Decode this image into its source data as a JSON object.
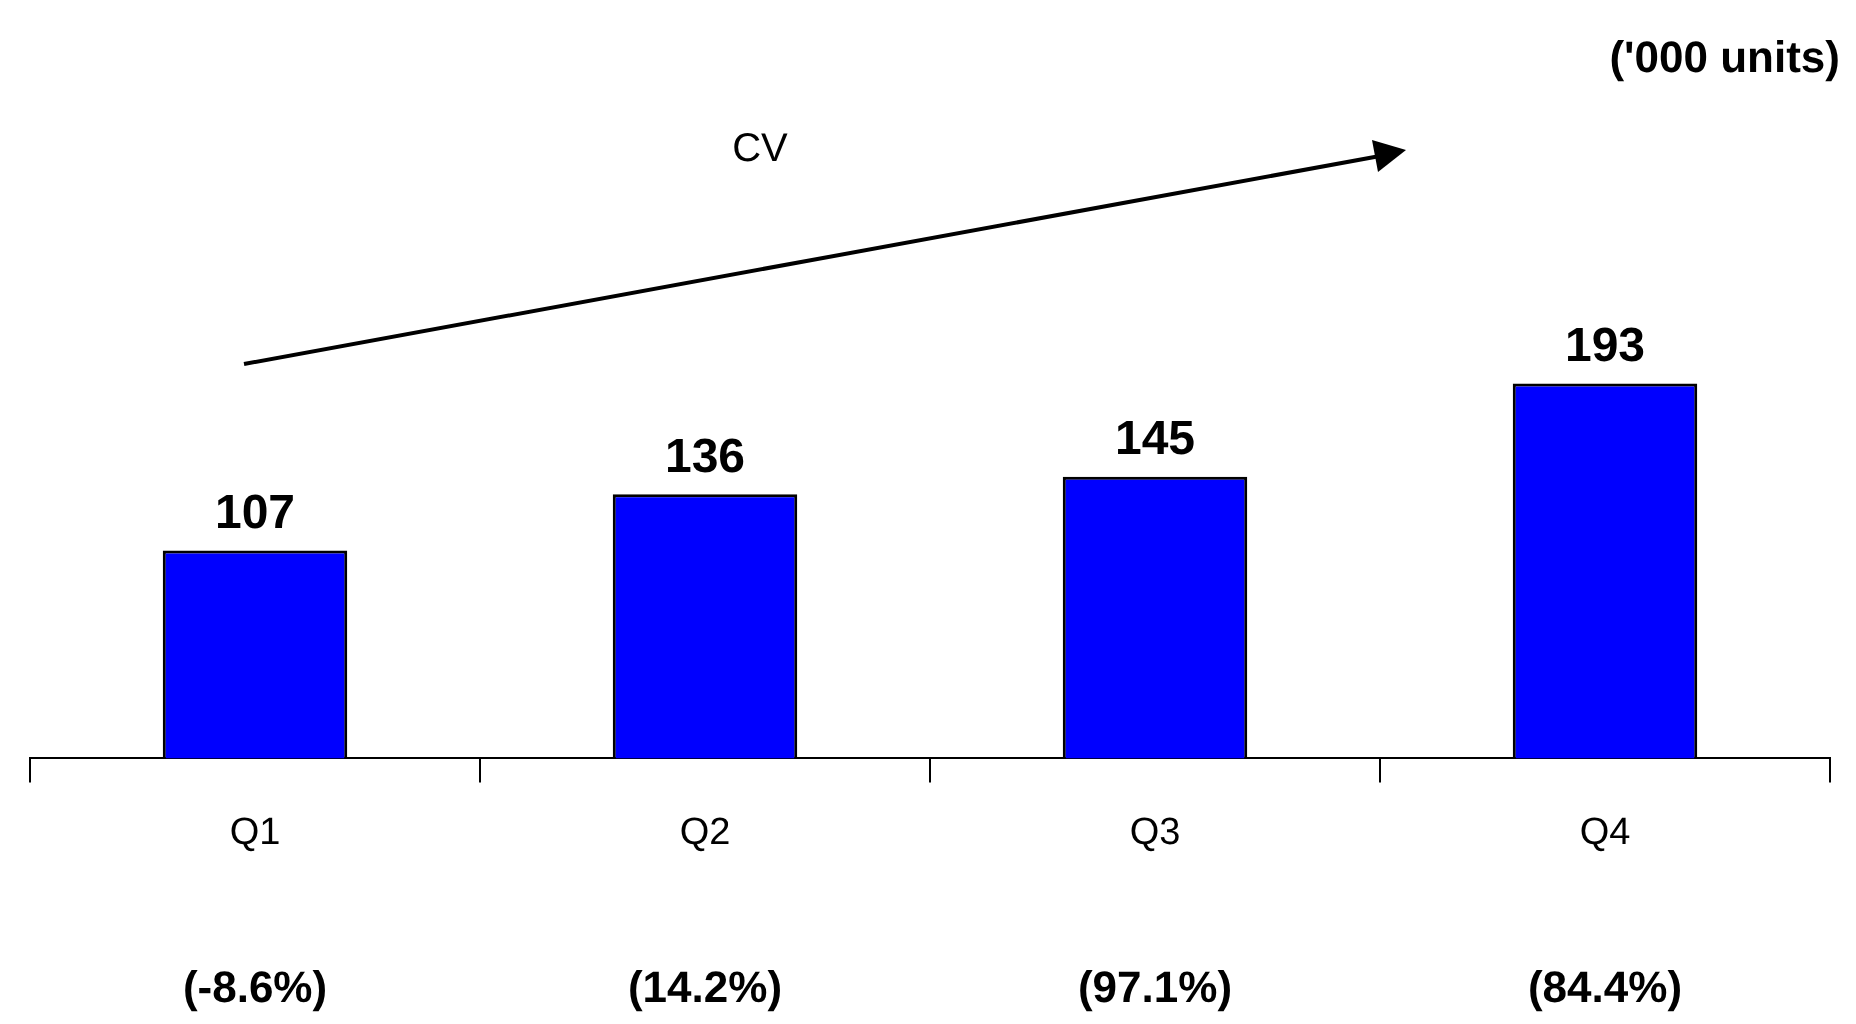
{
  "chart_data": {
    "type": "bar",
    "categories": [
      "Q1",
      "Q2",
      "Q3",
      "Q4"
    ],
    "values": [
      107,
      136,
      145,
      193
    ],
    "color": "#0000ff",
    "data_labels": true,
    "annotations": [
      "('000 units)",
      "CV",
      "(-8.6%)",
      "(14.2%)",
      "(97.1%)",
      "(84.4%)"
    ],
    "legend": false,
    "grid": false
  }
}
